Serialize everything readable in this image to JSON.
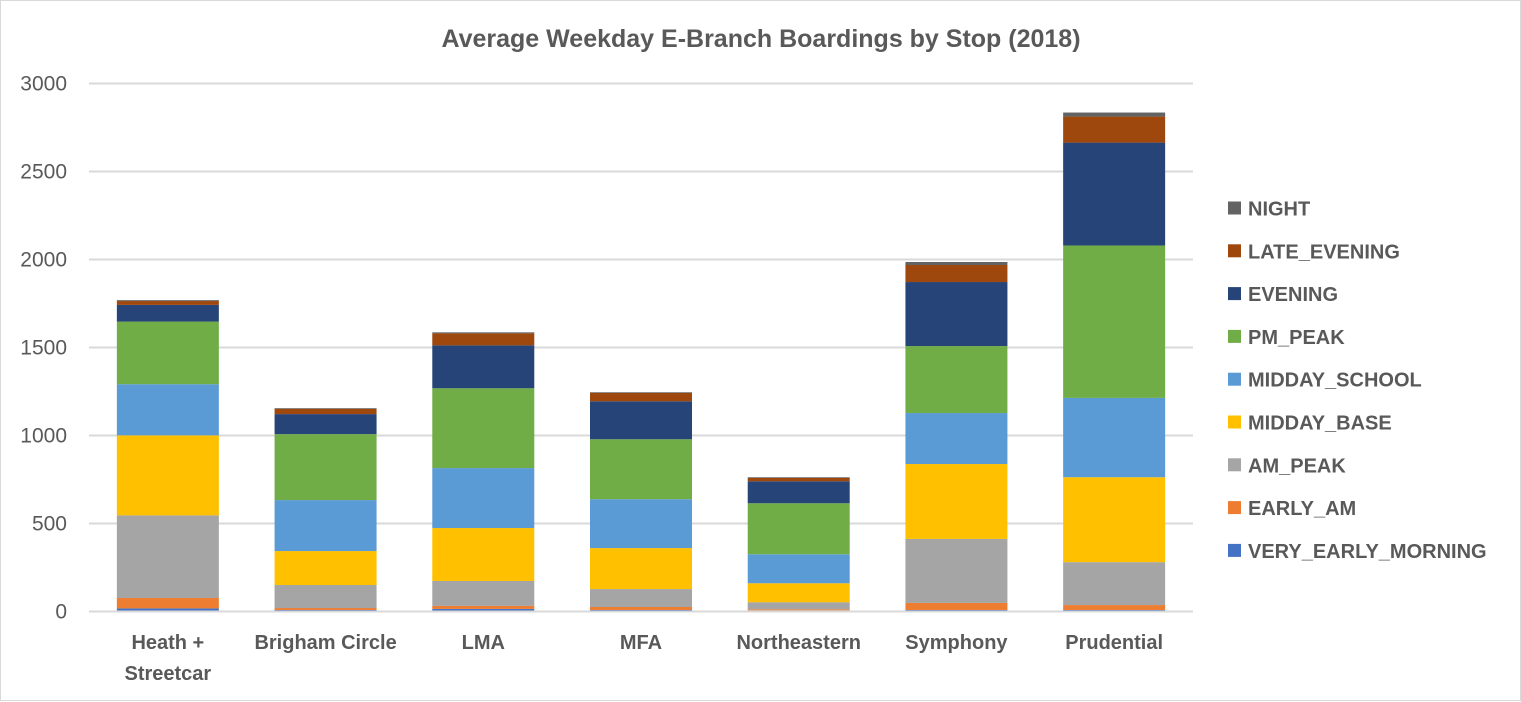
{
  "chart_data": {
    "type": "bar",
    "stacked": true,
    "title": "Average Weekday E-Branch Boardings by Stop (2018)",
    "xlabel": "",
    "ylabel": "",
    "ylim": [
      0,
      3000
    ],
    "yticks": [
      0,
      500,
      1000,
      1500,
      2000,
      2500,
      3000
    ],
    "grid": true,
    "legend_position": "right",
    "categories": [
      [
        "Heath +",
        "Streetcar"
      ],
      [
        "Brigham Circle"
      ],
      [
        "LMA"
      ],
      [
        "MFA"
      ],
      [
        "Northeastern"
      ],
      [
        "Symphony"
      ],
      [
        "Prudential"
      ]
    ],
    "series": [
      {
        "name": "VERY_EARLY_MORNING",
        "color": "#4472c4",
        "values": [
          12,
          3,
          9,
          3,
          1,
          3,
          3
        ]
      },
      {
        "name": "EARLY_AM",
        "color": "#ed7d31",
        "values": [
          59,
          11,
          17,
          17,
          6,
          40,
          28
        ]
      },
      {
        "name": "AM_PEAK",
        "color": "#a5a5a5",
        "values": [
          470,
          131,
          142,
          102,
          40,
          364,
          244
        ]
      },
      {
        "name": "MIDDAY_BASE",
        "color": "#ffc000",
        "values": [
          455,
          193,
          301,
          233,
          108,
          426,
          483
        ]
      },
      {
        "name": "MIDDAY_SCHOOL",
        "color": "#5b9bd5",
        "values": [
          291,
          290,
          341,
          278,
          165,
          290,
          451
        ]
      },
      {
        "name": "PM_PEAK",
        "color": "#70ad47",
        "values": [
          356,
          375,
          454,
          341,
          290,
          381,
          867
        ]
      },
      {
        "name": "EVENING",
        "color": "#264478",
        "values": [
          95,
          114,
          244,
          216,
          125,
          364,
          585
        ]
      },
      {
        "name": "LATE_EVENING",
        "color": "#9e480e",
        "values": [
          22,
          30,
          68,
          47,
          19,
          97,
          148
        ]
      },
      {
        "name": "NIGHT",
        "color": "#636363",
        "values": [
          5,
          4,
          6,
          4,
          4,
          17,
          23
        ]
      }
    ],
    "legend_order": [
      "NIGHT",
      "LATE_EVENING",
      "EVENING",
      "PM_PEAK",
      "MIDDAY_SCHOOL",
      "MIDDAY_BASE",
      "AM_PEAK",
      "EARLY_AM",
      "VERY_EARLY_MORNING"
    ]
  },
  "colors": {
    "text": "#595959",
    "gridline": "#d9d9d9",
    "border": "#d9d9d9",
    "background": "#ffffff"
  }
}
